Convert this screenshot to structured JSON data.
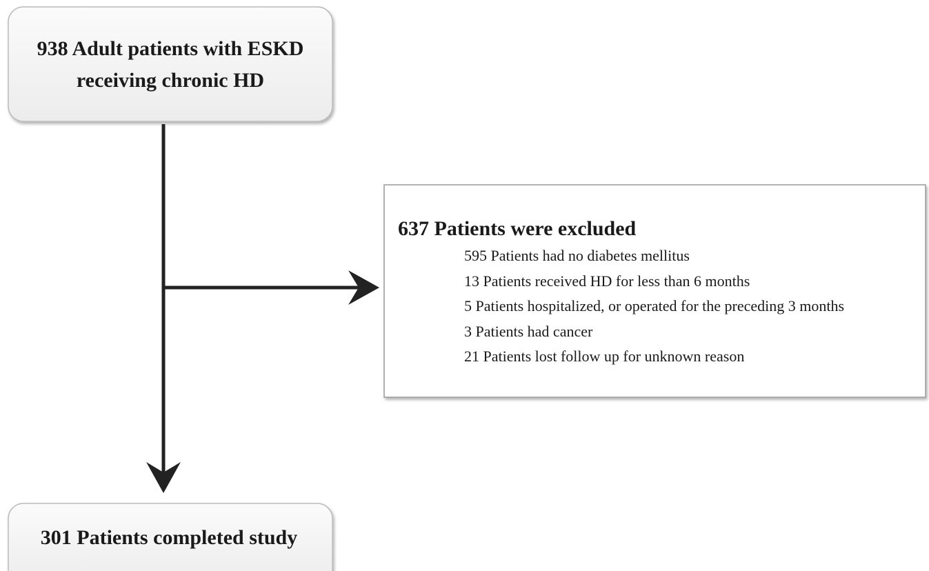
{
  "nodes": [
    {
      "label": [
        "938 Adult patients with ESKD",
        "receiving chronic HD"
      ]
    },
    {
      "label": "637 Patients were excluded",
      "items": [
        "595 Patients had no diabetes mellitus",
        "13 Patients received HD for less than 6 months",
        "5 Patients hospitalized, or operated for the preceding 3 months",
        "3 Patients had cancer",
        "21 Patients lost follow up for unknown reason"
      ]
    },
    {
      "label": "301 Patients completed study"
    }
  ]
}
